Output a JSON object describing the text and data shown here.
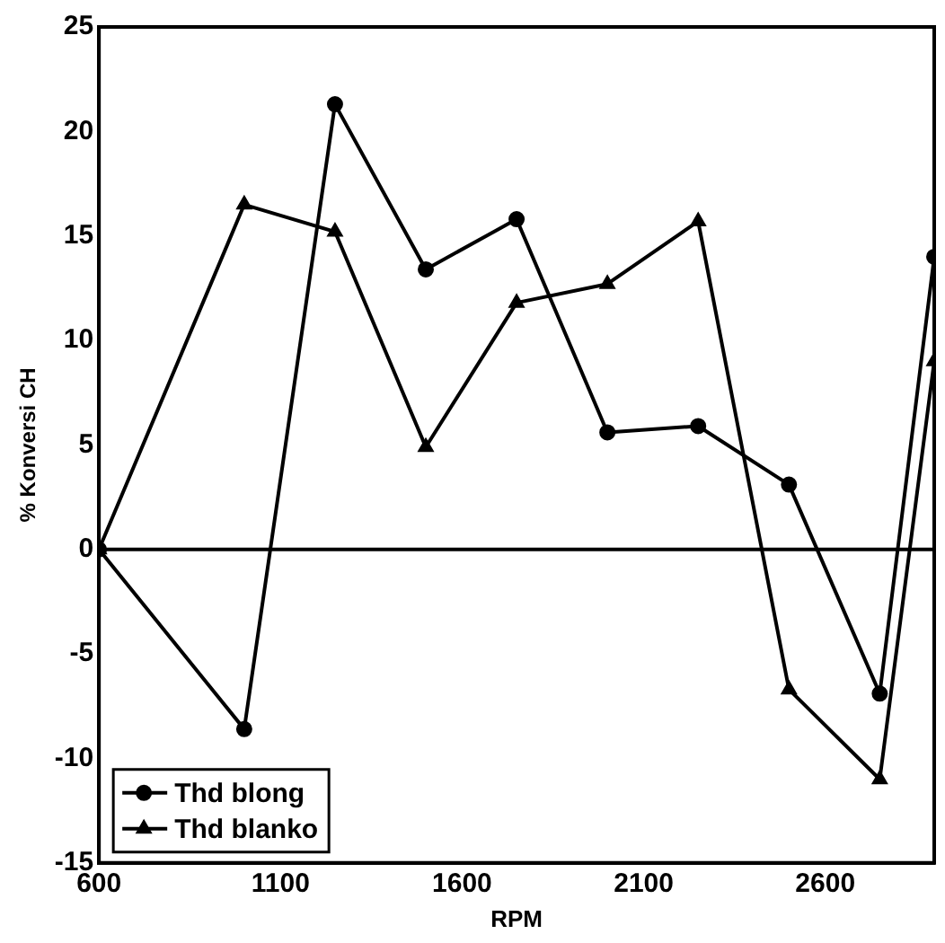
{
  "chart_data": {
    "type": "line",
    "xlabel": "RPM",
    "ylabel": "% Konversi CH",
    "x": [
      600,
      1000,
      1250,
      1500,
      1750,
      2000,
      2250,
      2500,
      2750,
      2900
    ],
    "series": [
      {
        "name": "Thd blong",
        "color": "#000000",
        "marker": "circle",
        "values": [
          0,
          -8.6,
          21.3,
          13.4,
          15.8,
          5.6,
          5.9,
          3.1,
          -6.9,
          14
        ]
      },
      {
        "name": "Thd blanko",
        "color": "#000000",
        "marker": "triangle",
        "values": [
          0,
          16.5,
          15.2,
          4.9,
          11.8,
          12.7,
          15.7,
          -6.7,
          -11,
          9
        ]
      }
    ],
    "xlim": [
      600,
      2900
    ],
    "xticks": [
      600,
      1100,
      1600,
      2100,
      2600
    ],
    "ylim": [
      -15,
      25
    ],
    "yticks": [
      -15,
      -10,
      -5,
      0,
      5,
      10,
      15,
      20,
      25
    ],
    "ref_lines": [
      {
        "axis": "y",
        "value": 0,
        "color": "#000000"
      }
    ],
    "grid": false,
    "legend": "bottom left",
    "line_style": "solid"
  }
}
